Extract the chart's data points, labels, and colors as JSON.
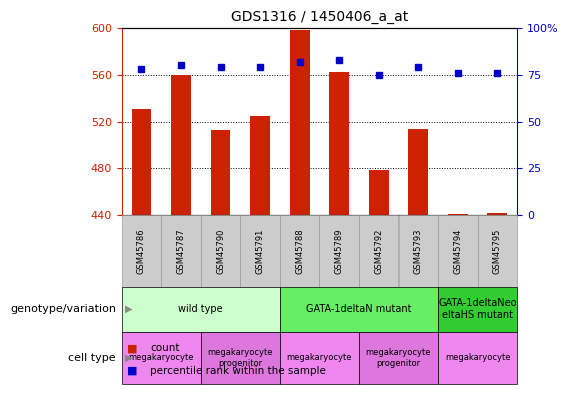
{
  "title": "GDS1316 / 1450406_a_at",
  "samples": [
    "GSM45786",
    "GSM45787",
    "GSM45790",
    "GSM45791",
    "GSM45788",
    "GSM45789",
    "GSM45792",
    "GSM45793",
    "GSM45794",
    "GSM45795"
  ],
  "counts": [
    531,
    560,
    513,
    525,
    598,
    562,
    479,
    514,
    441,
    442
  ],
  "percentile_ranks": [
    78,
    80,
    79,
    79,
    82,
    83,
    75,
    79,
    76,
    76
  ],
  "ylim_left": [
    440,
    600
  ],
  "ylim_right": [
    0,
    100
  ],
  "yticks_left": [
    440,
    480,
    520,
    560,
    600
  ],
  "yticks_right": [
    0,
    25,
    50,
    75,
    100
  ],
  "bar_color": "#cc2200",
  "dot_color": "#0000cc",
  "genotype_groups": [
    {
      "label": "wild type",
      "start": 0,
      "end": 4,
      "color": "#ccffcc"
    },
    {
      "label": "GATA-1deltaN mutant",
      "start": 4,
      "end": 8,
      "color": "#66ee66"
    },
    {
      "label": "GATA-1deltaNeo\neltaHS mutant",
      "start": 8,
      "end": 10,
      "color": "#33cc33"
    }
  ],
  "cell_type_groups": [
    {
      "label": "megakaryocyte",
      "start": 0,
      "end": 2,
      "color": "#ee88ee"
    },
    {
      "label": "megakaryocyte\nprogenitor",
      "start": 2,
      "end": 4,
      "color": "#dd77dd"
    },
    {
      "label": "megakaryocyte",
      "start": 4,
      "end": 6,
      "color": "#ee88ee"
    },
    {
      "label": "megakaryocyte\nprogenitor",
      "start": 6,
      "end": 8,
      "color": "#dd77dd"
    },
    {
      "label": "megakaryocyte",
      "start": 8,
      "end": 10,
      "color": "#ee88ee"
    }
  ],
  "genotype_label": "genotype/variation",
  "cell_type_label": "cell type",
  "legend_count_label": "count",
  "legend_percentile_label": "percentile rank within the sample",
  "axis_color_left": "#cc2200",
  "axis_color_right": "#0000cc",
  "gsm_bg_color": "#cccccc",
  "gsm_border_color": "#999999"
}
